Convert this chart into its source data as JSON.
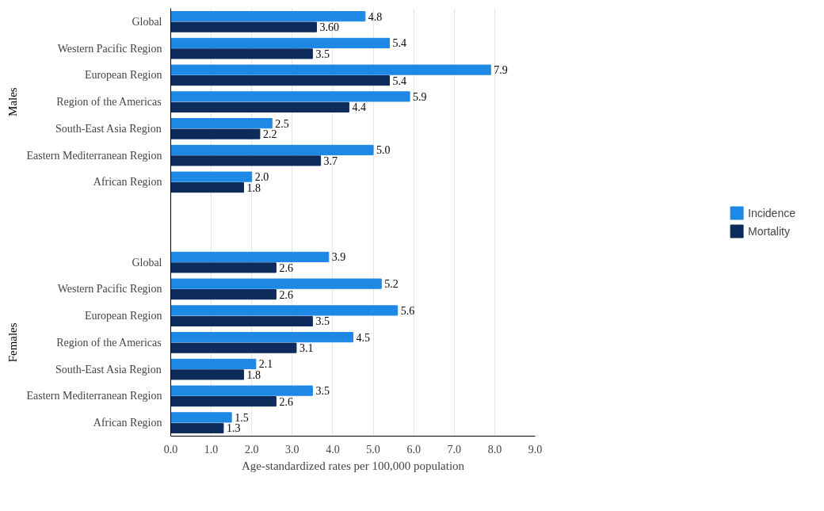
{
  "chart_data": {
    "type": "bar",
    "orientation": "horizontal",
    "xlabel": "Age-standardized rates per 100,000 population",
    "categories": [
      "Global",
      "Western Pacific Region",
      "European Region",
      "Region of the Americas",
      "South-East Asia Region",
      "Eastern Mediterranean Region",
      "African Region",
      null,
      null,
      "Global",
      "Western Pacific Region",
      "European Region",
      "Region of the Americas",
      "South-East Asia Region",
      "Eastern Mediterranean Region",
      "African Region"
    ],
    "series": [
      {
        "name": "Incidence",
        "color": "#1e88e5",
        "values": [
          4.8,
          5.4,
          7.9,
          5.9,
          2.5,
          5.0,
          2.0,
          null,
          null,
          3.9,
          5.2,
          5.6,
          4.5,
          2.1,
          3.5,
          1.5
        ],
        "value_labels": [
          "4.8",
          "5.4",
          "7.9",
          "5.9",
          "2.5",
          "5.0",
          "2.0",
          null,
          null,
          "3.9",
          "5.2",
          "5.6",
          "4.5",
          "2.1",
          "3.5",
          "1.5"
        ]
      },
      {
        "name": "Mortality",
        "color": "#0d2c5c",
        "values": [
          3.6,
          3.5,
          5.4,
          4.4,
          2.2,
          3.7,
          1.8,
          null,
          null,
          2.6,
          2.6,
          3.5,
          3.1,
          1.8,
          2.6,
          1.3
        ],
        "value_labels": [
          "3.60",
          "3.5",
          "5.4",
          "4.4",
          "2.2",
          "3.7",
          "1.8",
          null,
          null,
          "2.6",
          "2.6",
          "3.5",
          "3.1",
          "1.8",
          "2.6",
          "1.3"
        ]
      }
    ],
    "annotations": [
      "Males",
      "Females"
    ],
    "xlim": [
      0,
      9
    ],
    "xticks": [
      {
        "value": 0,
        "label": "0.0"
      },
      {
        "value": 1,
        "label": "1.0"
      },
      {
        "value": 2,
        "label": "2.0"
      },
      {
        "value": 3,
        "label": "3.0"
      },
      {
        "value": 4,
        "label": "4.0"
      },
      {
        "value": 5,
        "label": "5.0"
      },
      {
        "value": 6,
        "label": "6.0"
      },
      {
        "value": 7,
        "label": "7.0"
      },
      {
        "value": 8,
        "label": "8.0"
      },
      {
        "value": 9,
        "label": "9.0"
      }
    ],
    "grid": "x",
    "legend": "right"
  }
}
